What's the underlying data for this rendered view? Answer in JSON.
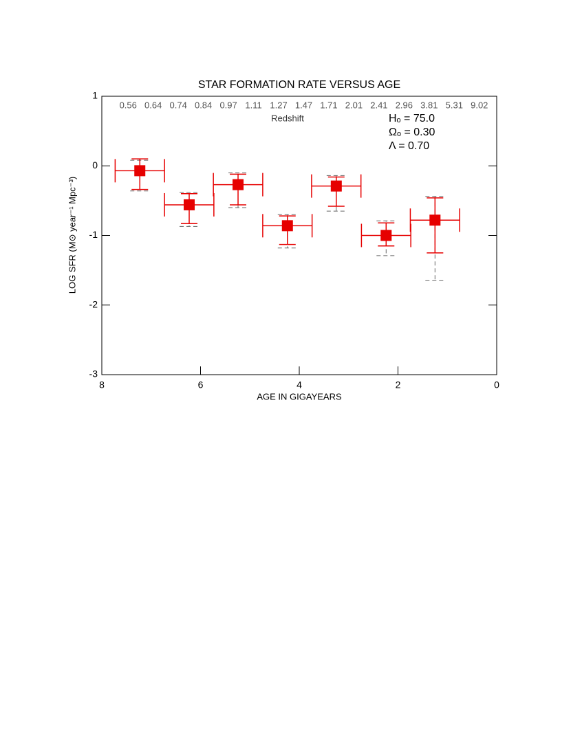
{
  "chart_data": {
    "type": "errorbar",
    "title": "STAR FORMATION RATE VERSUS AGE",
    "xlabel": "AGE IN GIGAYEARS",
    "ylabel": "LOG SFR (M⊙ year⁻¹ Mpc⁻³)",
    "x2label": "Redshift",
    "x2_labels": [
      0.56,
      0.64,
      0.74,
      0.84,
      0.97,
      1.11,
      1.27,
      1.47,
      1.71,
      2.01,
      2.41,
      2.96,
      3.81,
      5.31,
      9.02
    ],
    "annotations": [
      "Hₒ = 75.0",
      "Ωₒ = 0.30",
      "Λ = 0.70"
    ],
    "xlim": [
      8,
      0
    ],
    "xticks": [
      8,
      6,
      4,
      2,
      0
    ],
    "ylim": [
      -3,
      1
    ],
    "yticks": [
      -3,
      -2,
      -1,
      0,
      1
    ],
    "series": [
      {
        "color": "#e60000",
        "sys_color": "#666666",
        "x": [
          7.23,
          6.23,
          5.24,
          4.24,
          3.25,
          2.24,
          1.25
        ],
        "xerr": [
          0.5,
          0.5,
          0.5,
          0.5,
          0.5,
          0.5,
          0.5
        ],
        "y": [
          -0.07,
          -0.56,
          -0.27,
          -0.86,
          -0.29,
          -1.0,
          -0.78
        ],
        "yerr_high": [
          0.17,
          0.16,
          0.15,
          0.14,
          0.13,
          0.18,
          0.32
        ],
        "yerr_low": [
          0.27,
          0.27,
          0.29,
          0.27,
          0.29,
          0.15,
          0.47
        ],
        "sys_err_high": [
          0.15,
          0.18,
          0.17,
          0.16,
          0.15,
          0.21,
          0.34
        ],
        "sys_err_low": [
          0.29,
          0.31,
          0.33,
          0.32,
          0.36,
          0.29,
          0.87
        ]
      }
    ]
  }
}
